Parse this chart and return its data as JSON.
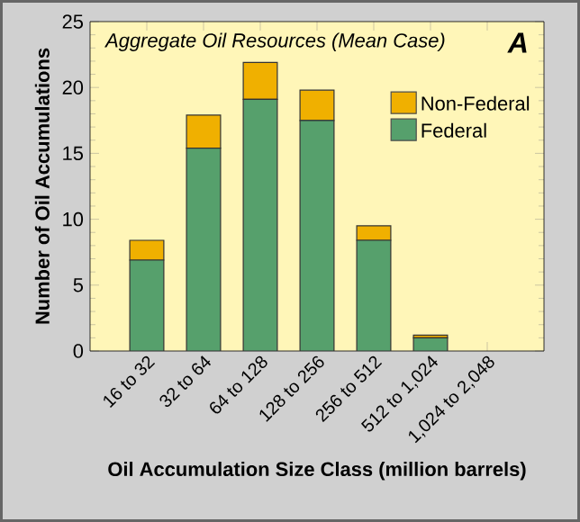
{
  "chart_data": {
    "type": "bar",
    "title": "Aggregate Oil Resources (Mean Case)",
    "xlabel": "Oil Accumulation Size Class (million barrels)",
    "ylabel": "Number of Oil Accumulations",
    "categories": [
      "16 to 32",
      "32 to 64",
      "64 to 128",
      "128 to 256",
      "256 to 512",
      "512 to 1,024",
      "1,024 to 2,048"
    ],
    "series": [
      {
        "name": "Federal",
        "color": "#56a06c",
        "values": [
          6.9,
          15.4,
          19.1,
          17.5,
          8.4,
          1.0,
          0
        ]
      },
      {
        "name": "Non-Federal",
        "color": "#f0b000",
        "values": [
          1.5,
          2.5,
          2.8,
          2.3,
          1.1,
          0.2,
          0
        ]
      }
    ],
    "stacked": true,
    "ylim": [
      0,
      25
    ],
    "yticks": [
      0,
      5,
      10,
      15,
      20,
      25
    ],
    "grid": false,
    "legend": "top right",
    "annotations": [
      "A"
    ]
  }
}
